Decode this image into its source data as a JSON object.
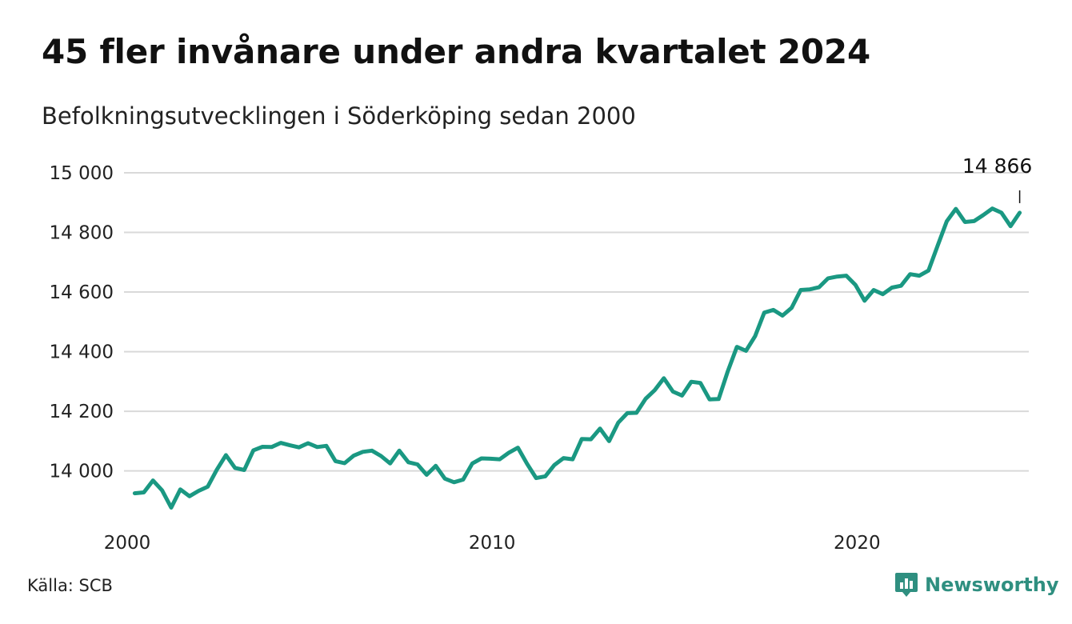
{
  "header": {
    "title": "45 fler invånare under andra kvartalet 2024",
    "subtitle": "Befolkningsutvecklingen i Söderköping sedan 2000"
  },
  "footer": {
    "source": "Källa: SCB",
    "brand": "Newsworthy"
  },
  "colors": {
    "line": "#1a9882",
    "grid": "#d9d9d9",
    "brand": "#2f8f80"
  },
  "chart_data": {
    "type": "line",
    "title": "45 fler invånare under andra kvartalet 2024",
    "subtitle": "Befolkningsutvecklingen i Söderköping sedan 2000",
    "xlabel": "",
    "ylabel": "",
    "ylim": [
      13830,
      15000
    ],
    "yticks": [
      14000,
      14200,
      14400,
      14600,
      14800,
      15000
    ],
    "ytick_labels": [
      "14 000",
      "14 200",
      "14 400",
      "14 600",
      "14 800",
      "15 000"
    ],
    "xlim": [
      2000.0,
      2024.75
    ],
    "xticks": [
      2000,
      2010,
      2020
    ],
    "xtick_labels": [
      "2000",
      "2010",
      "2020"
    ],
    "grid": "horizontal",
    "series": [
      {
        "name": "",
        "x": [
          2000.25,
          2000.5,
          2000.75,
          2001.0,
          2001.25,
          2001.5,
          2001.75,
          2002.0,
          2002.25,
          2002.5,
          2002.75,
          2003.0,
          2003.25,
          2003.5,
          2003.75,
          2004.0,
          2004.25,
          2004.5,
          2004.75,
          2005.0,
          2005.25,
          2005.5,
          2005.75,
          2006.0,
          2006.25,
          2006.5,
          2006.75,
          2007.0,
          2007.25,
          2007.5,
          2007.75,
          2008.0,
          2008.25,
          2008.5,
          2008.75,
          2009.0,
          2009.25,
          2009.5,
          2009.75,
          2010.0,
          2010.25,
          2010.5,
          2010.75,
          2011.0,
          2011.25,
          2011.5,
          2011.75,
          2012.0,
          2012.25,
          2012.5,
          2012.75,
          2013.0,
          2013.25,
          2013.5,
          2013.75,
          2014.0,
          2014.25,
          2014.5,
          2014.75,
          2015.0,
          2015.25,
          2015.5,
          2015.75,
          2016.0,
          2016.25,
          2016.5,
          2016.75,
          2017.0,
          2017.25,
          2017.5,
          2017.75,
          2018.0,
          2018.25,
          2018.5,
          2018.75,
          2019.0,
          2019.25,
          2019.5,
          2019.75,
          2020.0,
          2020.25,
          2020.5,
          2020.75,
          2021.0,
          2021.25,
          2021.5,
          2021.75,
          2022.0,
          2022.25,
          2022.5,
          2022.75,
          2023.0,
          2023.25,
          2023.5,
          2023.75,
          2024.0,
          2024.25,
          2024.5
        ],
        "values": [
          13925,
          13928,
          13968,
          13935,
          13877,
          13938,
          13915,
          13933,
          13947,
          14004,
          14053,
          14010,
          14003,
          14069,
          14081,
          14080,
          14094,
          14086,
          14079,
          14093,
          14080,
          14084,
          14033,
          14026,
          14051,
          14064,
          14068,
          14050,
          14025,
          14068,
          14029,
          14022,
          13987,
          14017,
          13974,
          13962,
          13971,
          14025,
          14042,
          14041,
          14039,
          14061,
          14078,
          14024,
          13976,
          13982,
          14020,
          14043,
          14039,
          14107,
          14106,
          14142,
          14100,
          14162,
          14194,
          14195,
          14242,
          14271,
          14311,
          14266,
          14253,
          14299,
          14295,
          14240,
          14241,
          14334,
          14416,
          14403,
          14452,
          14531,
          14540,
          14521,
          14547,
          14607,
          14609,
          14616,
          14646,
          14652,
          14655,
          14624,
          14571,
          14607,
          14593,
          14615,
          14621,
          14660,
          14655,
          14672,
          14755,
          14837,
          14879,
          14835,
          14838,
          14858,
          14880,
          14866,
          14821,
          14866
        ]
      }
    ],
    "annotations": [
      {
        "x": 2024.5,
        "y": 14866,
        "text": "14 866"
      }
    ]
  }
}
